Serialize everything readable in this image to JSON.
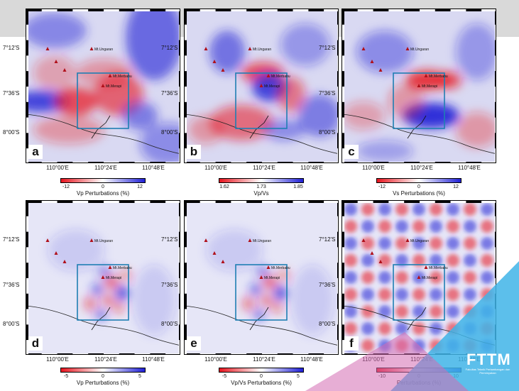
{
  "rows": [
    {
      "ylabels": [
        "7°12'S",
        "7°36'S",
        "8°00'S"
      ],
      "xlabels": [
        "110°00'E",
        "110°24'E",
        "110°48'E"
      ],
      "panels": [
        {
          "letter": "a",
          "volcanoes": [
            "Mt.Ungaran",
            "Mt.Merbabu",
            "Mt.Merapi"
          ],
          "colorbar": {
            "ticks": [
              "-12",
              "0",
              "12"
            ],
            "title": "Vp Perturbations (%)"
          }
        },
        {
          "letter": "b",
          "volcanoes": [
            "Mt.Ungaran",
            "Mt.Merbabu",
            "Mt.Merapi"
          ],
          "colorbar": {
            "ticks": [
              "1.62",
              "1.73",
              "1.85"
            ],
            "title": "Vp/Vs"
          }
        },
        {
          "letter": "c",
          "volcanoes": [
            "Mt.Ungaran",
            "Mt.Merbabu",
            "Mt.Merapi"
          ],
          "colorbar": {
            "ticks": [
              "-12",
              "0",
              "12"
            ],
            "title": "Vs Perturbations (%)"
          }
        }
      ]
    },
    {
      "ylabels": [
        "7°12'S",
        "7°36'S",
        "8°00'S"
      ],
      "xlabels": [
        "110°00'E",
        "110°24'E",
        "110°48'E"
      ],
      "panels": [
        {
          "letter": "d",
          "volcanoes": [
            "Mt.Ungaran",
            "Mt.Merbabu",
            "Mt.Merapi"
          ],
          "colorbar": {
            "ticks": [
              "-5",
              "0",
              "5"
            ],
            "title": "Vp Perturbations (%)"
          }
        },
        {
          "letter": "e",
          "volcanoes": [
            "Mt.Ungaran",
            "Mt.Merbabu",
            "Mt.Merapi"
          ],
          "colorbar": {
            "ticks": [
              "-5",
              "0",
              "5"
            ],
            "title": "Vp/Vs Perturbations (%)"
          }
        },
        {
          "letter": "f",
          "volcanoes": [
            "Mt.Ungaran",
            "Mt.Merbabu",
            "Mt.Merapi"
          ],
          "colorbar": {
            "ticks": [
              "-10",
              "0",
              "10"
            ],
            "title": "Perturbations (%)"
          }
        }
      ]
    }
  ],
  "logo": {
    "text": "FTTM",
    "subtext": "Fakultas Teknik Pertambangan dan Perminyakan"
  },
  "colors": {
    "negative": "#e8141e",
    "positive": "#1f1fd6",
    "neutral": "#ffffff",
    "box": "#1f7fb3",
    "volcano": "#b0101a",
    "logo_blue": "#3fb4e8",
    "logo_pink": "#d36bb3"
  }
}
